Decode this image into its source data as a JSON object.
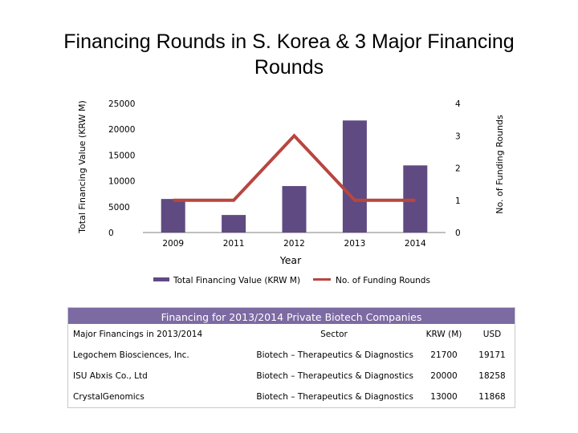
{
  "title": "Financing Rounds in S. Korea & 3 Major Financing Rounds",
  "chart_data": {
    "type": "bar",
    "categories": [
      "2009",
      "2011",
      "2012",
      "2013",
      "2014"
    ],
    "series": [
      {
        "name": "Total Financing Value (KRW M)",
        "type": "bar",
        "axis": "left",
        "values": [
          6500,
          3400,
          9000,
          21700,
          13000
        ],
        "color": "#5f4a82"
      },
      {
        "name": "No. of Funding Rounds",
        "type": "line",
        "axis": "right",
        "values": [
          1,
          1,
          3,
          1,
          1
        ],
        "color": "#b8463f"
      }
    ],
    "xlabel": "Year",
    "ylabel": "Total Financing Value (KRW M)",
    "y2label": "No. of Funding Rounds",
    "ylim": [
      0,
      25000
    ],
    "y2lim": [
      0,
      4
    ],
    "yticks": [
      "0",
      "5000",
      "10000",
      "15000",
      "20000",
      "25000"
    ],
    "y2ticks": [
      "0",
      "1",
      "2",
      "3",
      "4"
    ],
    "grid": false,
    "legend": "bottom"
  },
  "table": {
    "caption": "Financing for 2013/2014 Private Biotech Companies",
    "headers": [
      "Major Financings in 2013/2014",
      "Sector",
      "KRW (M)",
      "USD"
    ],
    "rows": [
      [
        "Legochem Biosciences, Inc.",
        "Biotech – Therapeutics & Diagnostics",
        "21700",
        "19171"
      ],
      [
        "ISU Abxis Co., Ltd",
        "Biotech – Therapeutics & Diagnostics",
        "20000",
        "18258"
      ],
      [
        "CrystalGenomics",
        "Biotech – Therapeutics & Diagnostics",
        "13000",
        "11868"
      ]
    ]
  }
}
